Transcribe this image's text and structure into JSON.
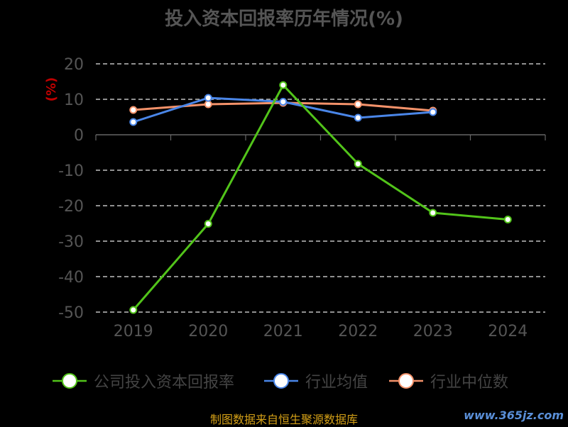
{
  "chart_data": {
    "type": "line",
    "title": "投入资本回报率历年情况(%)",
    "ylabel": "(%)",
    "categories": [
      "2019",
      "2020",
      "2021",
      "2022",
      "2023",
      "2024"
    ],
    "ylim": [
      -50,
      20
    ],
    "yticks": [
      20,
      10,
      0,
      -10,
      -20,
      -30,
      -40,
      -50
    ],
    "grid": true,
    "legend_position": "bottom",
    "series": [
      {
        "name": "公司投入资本回报率",
        "color": "#52c41a",
        "values": [
          -49.4,
          -25.1,
          14.0,
          -8.2,
          -22.0,
          -23.9
        ]
      },
      {
        "name": "行业均值",
        "color": "#4a86e8",
        "values": [
          3.6,
          10.4,
          9.3,
          4.8,
          6.4,
          null
        ]
      },
      {
        "name": "行业中位数",
        "color": "#f4926a",
        "values": [
          7.0,
          8.6,
          9.0,
          8.6,
          6.8,
          null
        ]
      }
    ]
  },
  "footer": {
    "source": "制图数据来自恒生聚源数据库",
    "watermark": "www.365jz.com"
  }
}
